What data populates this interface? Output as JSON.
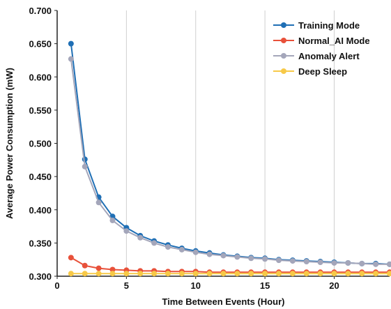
{
  "chart_data": {
    "type": "line",
    "title": "",
    "xlabel": "Time Between Events (Hour)",
    "ylabel": "Average Power Consumption (mW)",
    "xlim": [
      0,
      24
    ],
    "ylim": [
      0.3,
      0.7
    ],
    "x_ticks": [
      0,
      5,
      10,
      15,
      20
    ],
    "y_ticks": [
      "0.300",
      "0.350",
      "0.400",
      "0.450",
      "0.500",
      "0.550",
      "0.600",
      "0.650",
      "0.700"
    ],
    "grid": "vertical",
    "legend_position": "top-right",
    "x": [
      1,
      2,
      3,
      4,
      5,
      6,
      7,
      8,
      9,
      10,
      11,
      12,
      13,
      14,
      15,
      16,
      17,
      18,
      19,
      20,
      21,
      22,
      23,
      24
    ],
    "series": [
      {
        "name": "Training Mode",
        "color": "#1f6fb5",
        "values": [
          0.65,
          0.476,
          0.419,
          0.39,
          0.373,
          0.361,
          0.353,
          0.347,
          0.342,
          0.338,
          0.335,
          0.332,
          0.33,
          0.328,
          0.327,
          0.325,
          0.324,
          0.323,
          0.322,
          0.321,
          0.32,
          0.319,
          0.319,
          0.318
        ]
      },
      {
        "name": "Normal_AI Mode",
        "color": "#e8513a",
        "values": [
          0.328,
          0.316,
          0.312,
          0.31,
          0.309,
          0.308,
          0.308,
          0.307,
          0.307,
          0.307,
          0.306,
          0.306,
          0.306,
          0.306,
          0.306,
          0.306,
          0.306,
          0.306,
          0.306,
          0.306,
          0.306,
          0.306,
          0.306,
          0.306
        ]
      },
      {
        "name": "Anomaly Alert",
        "color": "#a4a6ba",
        "values": [
          0.627,
          0.465,
          0.411,
          0.384,
          0.368,
          0.358,
          0.35,
          0.344,
          0.34,
          0.336,
          0.333,
          0.331,
          0.329,
          0.327,
          0.326,
          0.324,
          0.323,
          0.322,
          0.321,
          0.32,
          0.32,
          0.319,
          0.318,
          0.318
        ]
      },
      {
        "name": "Deep Sleep",
        "color": "#f7c948",
        "values": [
          0.304,
          0.304,
          0.304,
          0.304,
          0.304,
          0.304,
          0.304,
          0.304,
          0.304,
          0.304,
          0.304,
          0.304,
          0.304,
          0.304,
          0.304,
          0.304,
          0.304,
          0.304,
          0.304,
          0.304,
          0.304,
          0.304,
          0.304,
          0.304
        ]
      }
    ]
  }
}
